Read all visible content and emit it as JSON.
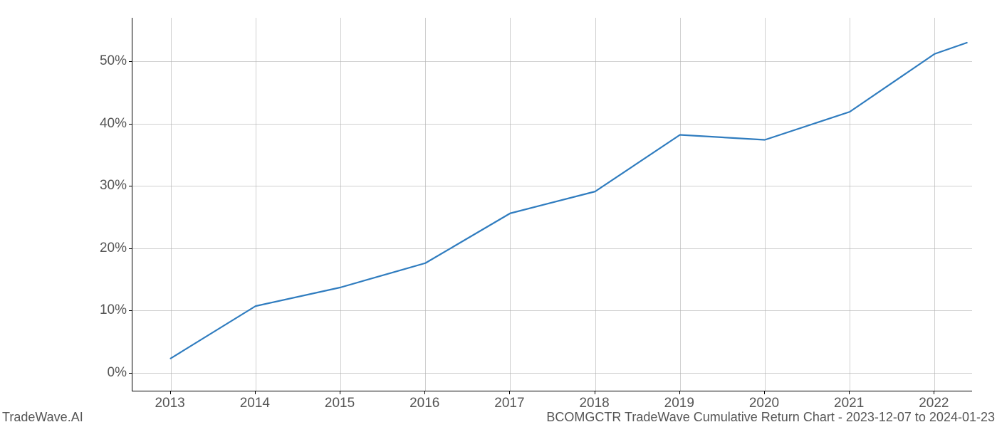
{
  "chart": {
    "type": "line",
    "background_color": "#ffffff",
    "grid_color": "#b0b0b0",
    "axis_color": "#000000",
    "line_color": "#2f7cbf",
    "line_width": 2.2,
    "tick_label_color": "#555555",
    "tick_label_fontsize": 19,
    "footer_fontsize": 18,
    "footer_color": "#555555",
    "x_ticks": [
      "2013",
      "2014",
      "2015",
      "2016",
      "2017",
      "2018",
      "2019",
      "2020",
      "2021",
      "2022"
    ],
    "y_ticks": [
      "0%",
      "10%",
      "20%",
      "30%",
      "40%",
      "50%"
    ],
    "y_tick_values": [
      0,
      10,
      20,
      30,
      40,
      50
    ],
    "xlim": [
      2012.55,
      2022.45
    ],
    "ylim": [
      -3,
      57
    ],
    "data": {
      "x": [
        2013,
        2014,
        2015,
        2016,
        2017,
        2018,
        2019,
        2020,
        2021,
        2022,
        2022.38
      ],
      "y": [
        2.3,
        10.7,
        13.7,
        17.6,
        25.6,
        29.1,
        38.2,
        37.4,
        41.9,
        51.2,
        53.0
      ]
    }
  },
  "footer": {
    "left": "TradeWave.AI",
    "right": "BCOMGCTR TradeWave Cumulative Return Chart - 2023-12-07 to 2024-01-23"
  }
}
